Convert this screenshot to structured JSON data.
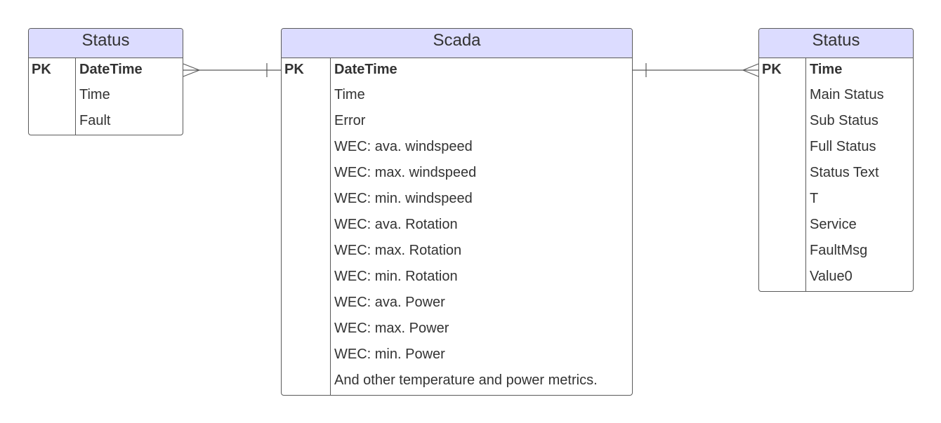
{
  "left_entity": {
    "title": "Status",
    "pk_label": "PK",
    "fields": [
      "DateTime",
      "Time",
      "Fault"
    ]
  },
  "center_entity": {
    "title": "Scada",
    "pk_label": "PK",
    "fields": [
      "DateTime",
      "Time",
      "Error",
      "WEC: ava. windspeed",
      "WEC: max. windspeed",
      "WEC: min. windspeed",
      "WEC: ava. Rotation",
      "WEC: max. Rotation",
      "WEC: min. Rotation",
      "WEC: ava. Power",
      "WEC: max. Power",
      "WEC: min. Power",
      "And other temperature and power metrics."
    ]
  },
  "right_entity": {
    "title": "Status",
    "pk_label": "PK",
    "fields": [
      "Time",
      "Main Status",
      "Sub Status",
      "Full Status",
      "Status Text",
      "T",
      "Service",
      "FaultMsg",
      "Value0"
    ]
  },
  "relationships": [
    {
      "from": "left_entity",
      "to": "center_entity",
      "from_cardinality": "many",
      "to_cardinality": "one"
    },
    {
      "from": "center_entity",
      "to": "right_entity",
      "from_cardinality": "one",
      "to_cardinality": "many"
    }
  ],
  "colors": {
    "header_fill": "#dcdcff",
    "border": "#5a5a5a",
    "text": "#333333"
  }
}
